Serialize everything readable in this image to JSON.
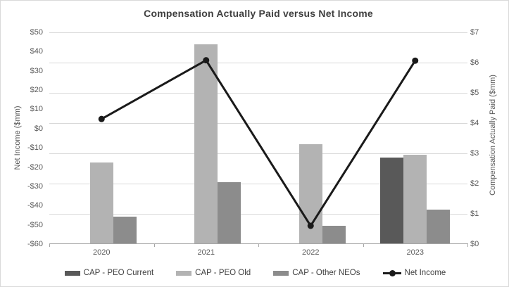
{
  "chart": {
    "title": "Compensation Actually Paid versus Net Income",
    "left_axis": {
      "title": "Net Income ($mm)",
      "ticks": [
        "$50",
        "$40",
        "$30",
        "$20",
        "$10",
        "$0",
        "-$10",
        "-$20",
        "-$30",
        "-$40",
        "-$50",
        "-$60"
      ],
      "min": -60,
      "max": 50
    },
    "right_axis": {
      "title": "Compensation Actually Paid ($mm)",
      "ticks": [
        "$7",
        "$6",
        "$5",
        "$4",
        "$3",
        "$2",
        "$1",
        "$0"
      ],
      "min": 0,
      "max": 7
    },
    "colors": {
      "cap_peo_current": "#595959",
      "cap_peo_old": "#b3b3b3",
      "cap_other_neos": "#8c8c8c",
      "net_income_line": "#1a1a1a",
      "gridline": "#d9d9d9",
      "axis_line": "#a6a6a6"
    }
  },
  "chart_data": {
    "type": "bar",
    "title": "Compensation Actually Paid versus Net Income",
    "categories": [
      "2020",
      "2021",
      "2022",
      "2023"
    ],
    "series": [
      {
        "name": "CAP - PEO Current",
        "kind": "bar",
        "axis": "right",
        "color": "#595959",
        "values": [
          null,
          null,
          null,
          2.85
        ]
      },
      {
        "name": "CAP - PEO Old",
        "kind": "bar",
        "axis": "right",
        "color": "#b3b3b3",
        "values": [
          2.7,
          6.6,
          3.3,
          2.95
        ]
      },
      {
        "name": "CAP - Other NEOs",
        "kind": "bar",
        "axis": "right",
        "color": "#8c8c8c",
        "values": [
          0.9,
          2.05,
          0.6,
          1.15
        ]
      },
      {
        "name": "Net Income",
        "kind": "line",
        "axis": "left",
        "color": "#1a1a1a",
        "values": [
          5,
          35.5,
          -50.5,
          35.3
        ]
      }
    ],
    "left_ylabel": "Net Income ($mm)",
    "right_ylabel": "Compensation Actually Paid ($mm)",
    "left_ylim": [
      -60,
      50
    ],
    "right_ylim": [
      0,
      7
    ],
    "grid": "horizontal, every $1 of right axis",
    "legend_position": "bottom"
  }
}
